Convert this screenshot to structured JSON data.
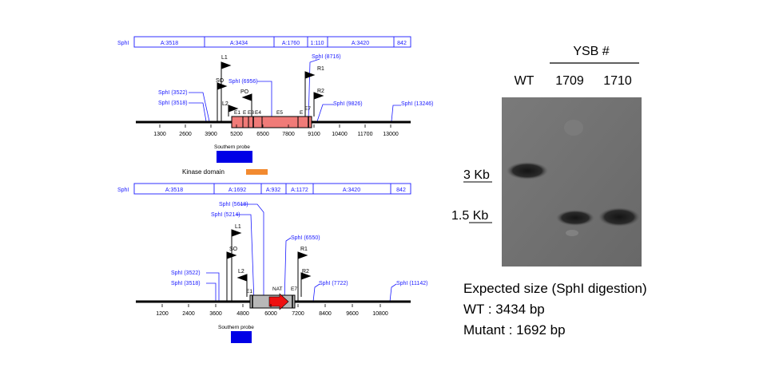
{
  "colors": {
    "site_blue": "#1a1aff",
    "wt_exon_fill": "#f07b78",
    "mut_exon_fill": "#b8b8b8",
    "probe_blue": "#0000e6",
    "kinase_orange": "#f28a30",
    "nat_red": "#ee1111",
    "blot_bg": "#6e6e6e"
  },
  "wt_map": {
    "fragment_bar": [
      "SphI",
      "A:3518",
      "A:3434",
      "A:1760",
      "1:110",
      "A:3420",
      "842"
    ],
    "sites": [
      "SphI (3522)",
      "SphI (3518)",
      "SphI (6956)",
      "SphI (8716)",
      "SphI (9826)",
      "SphI (13246)"
    ],
    "primers": [
      "L1",
      "SO",
      "PO",
      "L2",
      "R1",
      "R2"
    ],
    "exons": [
      "E1",
      "E",
      "E3",
      "E4",
      "E5",
      "E",
      "E7"
    ],
    "ticks": [
      "1300",
      "2600",
      "3900",
      "5200",
      "6500",
      "7800",
      "9100",
      "10400",
      "11700",
      "13000"
    ],
    "probe_label": "Southern probe",
    "kinase_label": "Kinase domain"
  },
  "mut_map": {
    "fragment_bar": [
      "SphI",
      "A:3518",
      "A:1692",
      "A:932",
      "A:1172",
      "A:3420",
      "842"
    ],
    "sites": [
      "SphI (5618)",
      "SphI (5214)",
      "SphI (6550)",
      "SphI (3522)",
      "SphI (3518)",
      "SphI (7722)",
      "SphI (11142)"
    ],
    "primers": [
      "L1",
      "SO",
      "L2",
      "R1",
      "R2"
    ],
    "features": [
      "E1",
      "NAT",
      "E7"
    ],
    "ticks": [
      "1200",
      "2400",
      "3600",
      "4800",
      "6000",
      "7200",
      "8400",
      "9600",
      "10800"
    ],
    "probe_label": "Southern probe"
  },
  "blot": {
    "group_label": "YSB #",
    "lanes": [
      "WT",
      "1709",
      "1710"
    ],
    "markers": [
      "3 Kb",
      "1.5 Kb"
    ]
  },
  "expected": {
    "title": "Expected size (SphI digestion)",
    "wt": "WT : 3434 bp",
    "mutant": "Mutant : 1692 bp"
  }
}
